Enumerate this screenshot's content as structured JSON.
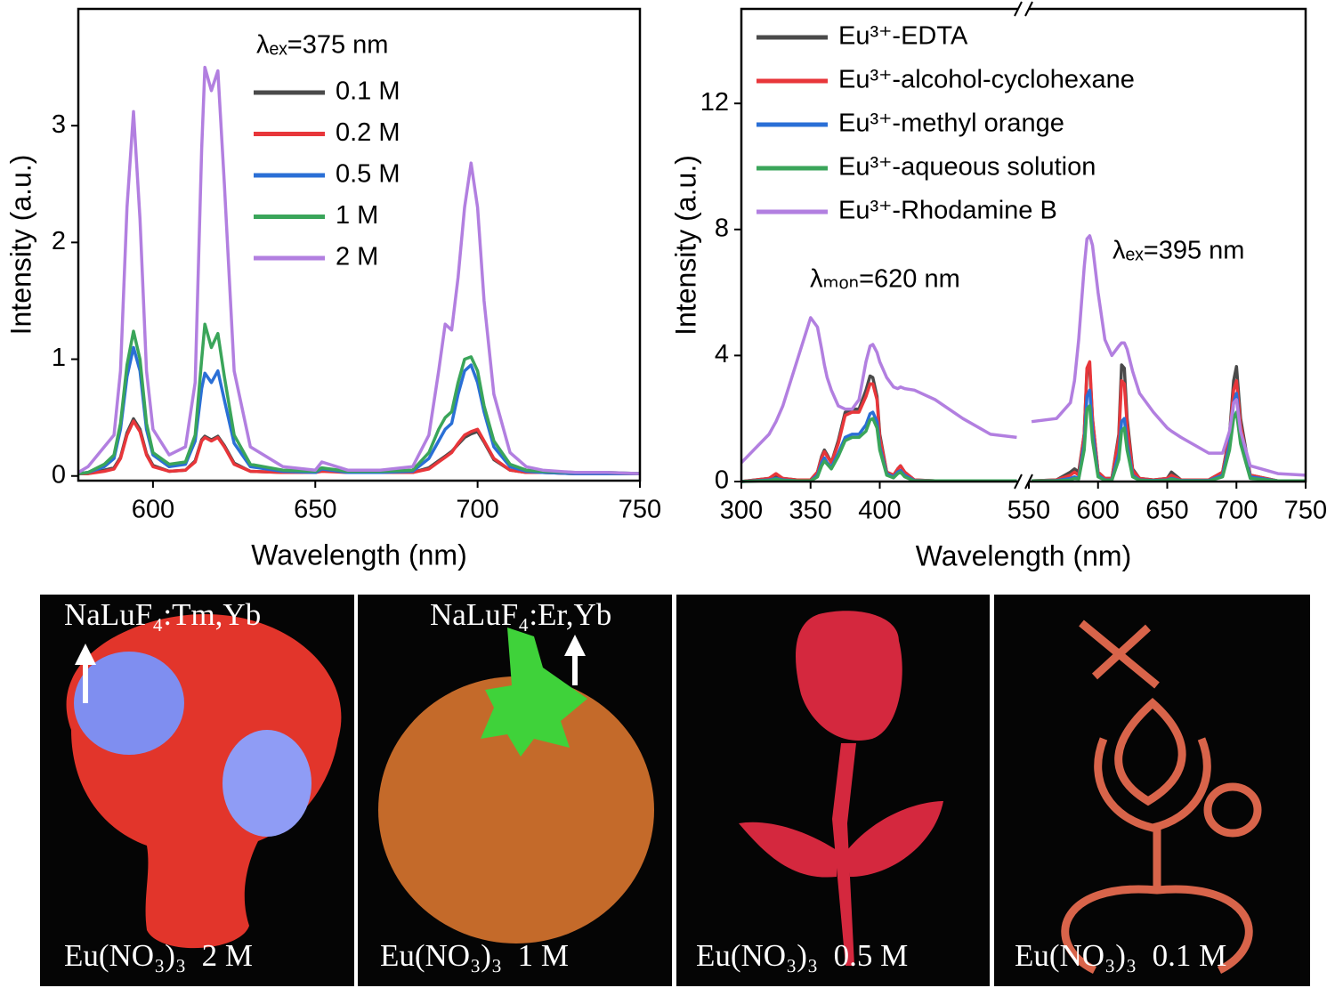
{
  "chart_data": [
    {
      "type": "line",
      "xlabel": "Wavelength (nm)",
      "ylabel": "Intensity (a.u.)",
      "annotations": [
        {
          "text": "λₑₓ=375 nm"
        }
      ],
      "legend": "upper left",
      "xlim": [
        577,
        750
      ],
      "xticks": [
        600,
        650,
        700,
        750
      ],
      "ylim": [
        -0.04,
        4.0
      ],
      "yticks": [
        0,
        1,
        2,
        3
      ],
      "x": [
        577,
        580,
        585,
        588,
        590,
        592,
        594,
        596,
        598,
        600,
        605,
        610,
        613,
        615,
        616,
        618,
        620,
        622,
        625,
        630,
        640,
        650,
        652,
        660,
        670,
        680,
        685,
        688,
        690,
        692,
        694,
        696,
        698,
        700,
        702,
        705,
        710,
        715,
        720,
        730,
        740,
        750
      ],
      "series": [
        {
          "name": "0.1 M",
          "color": "#4a4a4a",
          "values": [
            0.02,
            0.02,
            0.05,
            0.07,
            0.16,
            0.37,
            0.49,
            0.4,
            0.19,
            0.09,
            0.04,
            0.05,
            0.13,
            0.31,
            0.34,
            0.31,
            0.34,
            0.26,
            0.11,
            0.04,
            0.03,
            0.03,
            0.05,
            0.03,
            0.03,
            0.03,
            0.07,
            0.13,
            0.17,
            0.21,
            0.27,
            0.33,
            0.36,
            0.38,
            0.29,
            0.14,
            0.05,
            0.03,
            0.03,
            0.02,
            0.02,
            0.02
          ]
        },
        {
          "name": "0.2 M",
          "color": "#e8363a",
          "values": [
            0.02,
            0.02,
            0.04,
            0.06,
            0.15,
            0.35,
            0.47,
            0.38,
            0.18,
            0.08,
            0.04,
            0.05,
            0.12,
            0.3,
            0.33,
            0.3,
            0.33,
            0.25,
            0.1,
            0.04,
            0.03,
            0.03,
            0.04,
            0.03,
            0.03,
            0.03,
            0.06,
            0.12,
            0.16,
            0.2,
            0.28,
            0.35,
            0.38,
            0.4,
            0.3,
            0.15,
            0.05,
            0.03,
            0.03,
            0.02,
            0.02,
            0.02
          ]
        },
        {
          "name": "0.5 M",
          "color": "#2a6fd6",
          "values": [
            0.02,
            0.03,
            0.08,
            0.15,
            0.4,
            0.85,
            1.1,
            0.9,
            0.4,
            0.18,
            0.08,
            0.1,
            0.3,
            0.75,
            0.88,
            0.8,
            0.9,
            0.65,
            0.28,
            0.08,
            0.04,
            0.03,
            0.06,
            0.03,
            0.03,
            0.04,
            0.15,
            0.3,
            0.4,
            0.45,
            0.7,
            0.9,
            0.95,
            0.8,
            0.55,
            0.25,
            0.08,
            0.04,
            0.03,
            0.02,
            0.02,
            0.02
          ]
        },
        {
          "name": "1 M",
          "color": "#3aa55a",
          "values": [
            0.02,
            0.03,
            0.1,
            0.18,
            0.45,
            0.95,
            1.24,
            1.0,
            0.45,
            0.2,
            0.1,
            0.12,
            0.35,
            1.0,
            1.3,
            1.1,
            1.22,
            0.85,
            0.35,
            0.1,
            0.05,
            0.04,
            0.07,
            0.04,
            0.04,
            0.05,
            0.2,
            0.4,
            0.5,
            0.55,
            0.8,
            1.0,
            1.02,
            0.9,
            0.6,
            0.3,
            0.1,
            0.05,
            0.04,
            0.03,
            0.03,
            0.02
          ]
        },
        {
          "name": "2 M",
          "color": "#b27fe0",
          "values": [
            0.03,
            0.08,
            0.25,
            0.35,
            0.9,
            2.3,
            3.12,
            2.2,
            0.9,
            0.4,
            0.18,
            0.25,
            0.8,
            2.8,
            3.5,
            3.3,
            3.47,
            2.5,
            0.9,
            0.25,
            0.08,
            0.05,
            0.12,
            0.05,
            0.05,
            0.08,
            0.35,
            0.9,
            1.3,
            1.25,
            1.7,
            2.3,
            2.68,
            2.3,
            1.5,
            0.7,
            0.2,
            0.08,
            0.05,
            0.03,
            0.03,
            0.02
          ]
        }
      ]
    },
    {
      "type": "line",
      "xlabel": "Wavelength (nm)",
      "ylabel": "Intensity (a.u.)",
      "annotations": [
        {
          "text": "λₘₒₙ=620 nm"
        },
        {
          "text": "λₑₓ=395 nm"
        }
      ],
      "legend": "upper left",
      "xlim": [
        300,
        750
      ],
      "x_break": [
        500,
        550
      ],
      "xticks": [
        300,
        350,
        400,
        550,
        600,
        650,
        700,
        750
      ],
      "ylim": [
        0,
        15
      ],
      "yticks": [
        0,
        4,
        8,
        12
      ],
      "x": [
        300,
        320,
        325,
        330,
        340,
        350,
        355,
        358,
        360,
        362,
        365,
        370,
        375,
        380,
        385,
        390,
        393,
        395,
        398,
        400,
        405,
        410,
        413,
        415,
        418,
        425,
        440,
        460,
        480,
        499,
        552,
        570,
        580,
        583,
        586,
        590,
        592,
        594,
        596,
        600,
        605,
        610,
        615,
        617,
        619,
        621,
        625,
        630,
        640,
        650,
        653,
        660,
        680,
        690,
        695,
        698,
        700,
        703,
        710,
        730,
        750
      ],
      "series": [
        {
          "name": "Eu³⁺-EDTA",
          "color": "#4a4a4a",
          "values": [
            0,
            0.1,
            0.2,
            0.1,
            0.05,
            0.05,
            0.3,
            0.8,
            1.0,
            0.85,
            0.6,
            1.3,
            2.2,
            2.3,
            2.3,
            2.9,
            3.35,
            3.3,
            2.7,
            1.5,
            0.3,
            0.2,
            0.4,
            0.5,
            0.3,
            0.05,
            0.02,
            0.02,
            0.02,
            0.02,
            0.02,
            0.05,
            0.3,
            0.4,
            0.3,
            1.5,
            3.5,
            3.6,
            2.0,
            0.3,
            0.1,
            0.1,
            1.5,
            3.7,
            3.6,
            2.0,
            0.4,
            0.1,
            0.05,
            0.1,
            0.3,
            0.05,
            0.05,
            0.3,
            1.5,
            3.2,
            3.65,
            2.0,
            0.2,
            0.02,
            0.02
          ]
        },
        {
          "name": "Eu³⁺-alcohol-cyclohexane",
          "color": "#e8363a",
          "values": [
            0,
            0.1,
            0.25,
            0.1,
            0.05,
            0.05,
            0.3,
            0.75,
            0.95,
            0.8,
            0.6,
            1.2,
            2.1,
            2.2,
            2.2,
            2.7,
            3.1,
            3.1,
            2.6,
            1.4,
            0.3,
            0.2,
            0.4,
            0.5,
            0.3,
            0.05,
            0.02,
            0.02,
            0.02,
            0.02,
            0.02,
            0.05,
            0.2,
            0.3,
            0.2,
            1.5,
            3.6,
            3.8,
            2.0,
            0.3,
            0.1,
            0.1,
            1.4,
            3.2,
            3.1,
            1.8,
            0.35,
            0.1,
            0.05,
            0.1,
            0.2,
            0.05,
            0.05,
            0.3,
            1.4,
            2.9,
            3.2,
            1.8,
            0.2,
            0.02,
            0.02
          ]
        },
        {
          "name": "Eu³⁺-methyl orange",
          "color": "#2a6fd6",
          "values": [
            0,
            0.05,
            0.1,
            0.05,
            0.02,
            0.02,
            0.2,
            0.6,
            0.75,
            0.6,
            0.45,
            0.9,
            1.4,
            1.5,
            1.5,
            1.8,
            2.15,
            2.2,
            1.9,
            1.1,
            0.25,
            0.15,
            0.3,
            0.35,
            0.2,
            0.03,
            0.02,
            0.02,
            0.02,
            0.02,
            0.02,
            0.03,
            0.1,
            0.15,
            0.1,
            1.2,
            2.7,
            2.9,
            1.6,
            0.2,
            0.05,
            0.05,
            0.9,
            1.9,
            2.0,
            1.2,
            0.2,
            0.05,
            0.03,
            0.05,
            0.1,
            0.03,
            0.03,
            0.2,
            1.2,
            2.5,
            2.8,
            1.5,
            0.15,
            0.02,
            0.02
          ]
        },
        {
          "name": "Eu³⁺-aqueous solution",
          "color": "#3aa55a",
          "values": [
            0,
            0.03,
            0.08,
            0.03,
            0.02,
            0.02,
            0.15,
            0.5,
            0.65,
            0.55,
            0.4,
            0.8,
            1.3,
            1.4,
            1.4,
            1.6,
            1.95,
            2.0,
            1.7,
            1.0,
            0.2,
            0.12,
            0.25,
            0.3,
            0.15,
            0.02,
            0.02,
            0.02,
            0.02,
            0.02,
            0.02,
            0.02,
            0.05,
            0.1,
            0.08,
            1.0,
            2.3,
            2.4,
            1.3,
            0.15,
            0.04,
            0.04,
            0.7,
            1.6,
            1.7,
            1.0,
            0.15,
            0.04,
            0.02,
            0.04,
            0.08,
            0.02,
            0.02,
            0.15,
            1.0,
            2.0,
            2.2,
            1.2,
            0.1,
            0.02,
            0.02
          ]
        },
        {
          "name": "Eu³⁺-Rhodamine B",
          "color": "#b27fe0",
          "values": [
            0.6,
            1.5,
            1.9,
            2.4,
            3.8,
            5.2,
            4.9,
            4.2,
            3.7,
            3.3,
            2.9,
            2.4,
            2.3,
            2.3,
            2.6,
            3.8,
            4.3,
            4.35,
            4.1,
            3.8,
            3.3,
            3.0,
            2.95,
            3.0,
            2.95,
            2.9,
            2.6,
            2.0,
            1.5,
            1.4,
            1.9,
            2.0,
            2.5,
            3.2,
            4.5,
            6.8,
            7.7,
            7.8,
            7.5,
            6.0,
            4.5,
            4.0,
            4.3,
            4.4,
            4.4,
            4.2,
            3.5,
            2.8,
            2.2,
            1.7,
            1.6,
            1.4,
            0.9,
            0.9,
            1.6,
            2.5,
            2.6,
            1.6,
            0.5,
            0.25,
            0.2
          ]
        }
      ]
    }
  ],
  "photos": [
    {
      "label": "NaLuF₄:Tm,Yb",
      "caption": "Eu(NO₃)₃  2 M"
    },
    {
      "label": "NaLuF₄:Er,Yb",
      "caption": "Eu(NO₃)₃  1 M"
    },
    {
      "caption": "Eu(NO₃)₃  0.5 M"
    },
    {
      "caption": "Eu(NO₃)₃  0.1 M"
    }
  ]
}
